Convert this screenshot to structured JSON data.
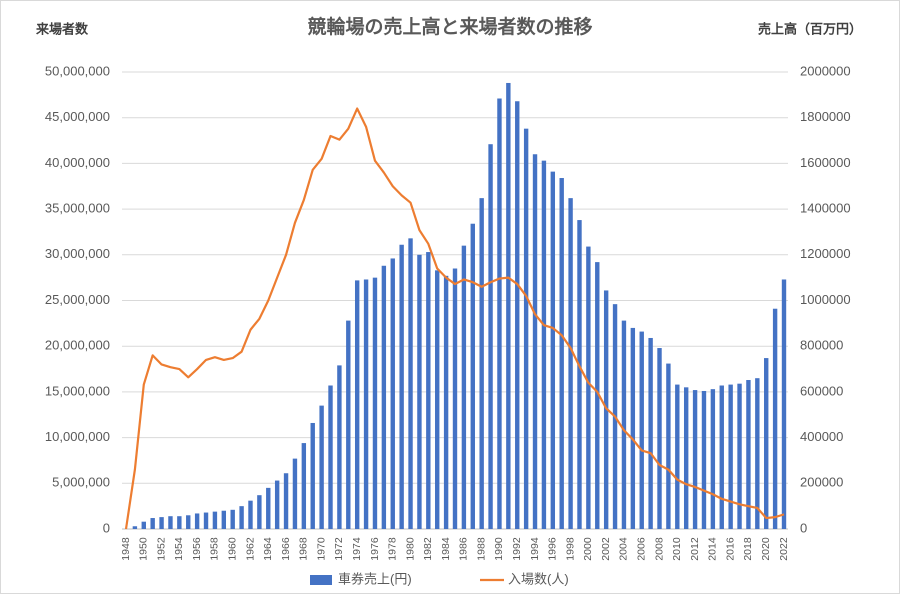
{
  "chart_data": {
    "type": "bar_line",
    "title": "競輪場の売上高と来場者数の推移",
    "y_label": "来場者数",
    "y2_label": "売上高（百万円）",
    "categories": [
      "1948",
      null,
      "1950",
      null,
      "1952",
      null,
      "1954",
      null,
      "1956",
      null,
      "1958",
      null,
      "1960",
      null,
      "1962",
      null,
      "1964",
      null,
      "1966",
      null,
      "1968",
      null,
      "1970",
      null,
      "1972",
      null,
      "1974",
      null,
      "1976",
      null,
      "1978",
      null,
      "1980",
      null,
      "1982",
      null,
      "1984",
      null,
      "1986",
      null,
      "1988",
      null,
      "1990",
      null,
      "1992",
      null,
      "1994",
      null,
      "1996",
      null,
      "1998",
      null,
      "2000",
      null,
      "2002",
      null,
      "2004",
      null,
      "2006",
      null,
      "2008",
      null,
      "2010",
      null,
      "2012",
      null,
      "2014",
      null,
      "2016",
      null,
      "2018",
      null,
      "2020",
      null,
      "2022"
    ],
    "series": [
      {
        "name": "車券売上(円)",
        "type": "bar",
        "axis": "y2",
        "color": "#4472c4",
        "values": [
          0,
          12000,
          32000,
          48000,
          52000,
          56000,
          56000,
          60000,
          68000,
          72000,
          76000,
          80000,
          84000,
          100000,
          124000,
          148000,
          180000,
          212000,
          244000,
          308000,
          376000,
          464000,
          540000,
          628000,
          716000,
          912000,
          1088000,
          1092000,
          1100000,
          1152000,
          1184000,
          1244000,
          1272000,
          1200000,
          1212000,
          1132000,
          1108000,
          1140000,
          1240000,
          1336000,
          1448000,
          1684000,
          1884000,
          1952000,
          1872000,
          1752000,
          1640000,
          1612000,
          1564000,
          1536000,
          1448000,
          1352000,
          1236000,
          1168000,
          1044000,
          984000,
          912000,
          880000,
          864000,
          836000,
          792000,
          724000,
          632000,
          620000,
          608000,
          604000,
          612000,
          628000,
          632000,
          636000,
          652000,
          660000,
          748000,
          964000,
          1092000
        ]
      },
      {
        "name": "入場数(人)",
        "type": "line",
        "axis": "y",
        "color": "#ed7d31",
        "values": [
          0,
          6500000,
          15800000,
          19000000,
          18000000,
          17700000,
          17500000,
          16600000,
          17500000,
          18500000,
          18800000,
          18500000,
          18700000,
          19400000,
          21800000,
          23000000,
          25000000,
          27500000,
          30000000,
          33500000,
          36000000,
          39300000,
          40500000,
          43000000,
          42600000,
          43800000,
          46000000,
          44000000,
          40300000,
          39000000,
          37500000,
          36500000,
          35700000,
          32700000,
          31200000,
          28500000,
          27500000,
          26800000,
          27300000,
          27000000,
          26500000,
          27000000,
          27400000,
          27500000,
          26800000,
          25500000,
          23500000,
          22300000,
          22000000,
          21200000,
          19800000,
          17800000,
          16000000,
          15000000,
          13200000,
          12300000,
          10800000,
          9800000,
          8600000,
          8300000,
          7000000,
          6500000,
          5400000,
          4900000,
          4600000,
          4200000,
          3800000,
          3300000,
          3000000,
          2700000,
          2500000,
          2300000,
          1200000,
          1300000,
          1600000
        ]
      }
    ],
    "ylim": [
      0,
      50000000
    ],
    "yticks": [
      0,
      {
        "value": 5000000,
        "label": "5,000,000"
      },
      {
        "value": 10000000,
        "label": "10,000,000"
      },
      {
        "value": 15000000,
        "label": "15,000,000"
      },
      {
        "value": 20000000,
        "label": "20,000,000"
      },
      {
        "value": 25000000,
        "label": "25,000,000"
      },
      {
        "value": 30000000,
        "label": "30,000,000"
      },
      {
        "value": 35000000,
        "label": "35,000,000"
      },
      {
        "value": 40000000,
        "label": "40,000,000"
      },
      {
        "value": 45000000,
        "label": "45,000,000"
      },
      {
        "value": 50000000,
        "label": "50,000,000"
      }
    ],
    "y2lim": [
      0,
      2000000
    ],
    "y2ticks": [
      0,
      200000,
      400000,
      600000,
      800000,
      1000000,
      1200000,
      1400000,
      1600000,
      1800000,
      2000000
    ],
    "grid": true,
    "legend": "bottom"
  }
}
